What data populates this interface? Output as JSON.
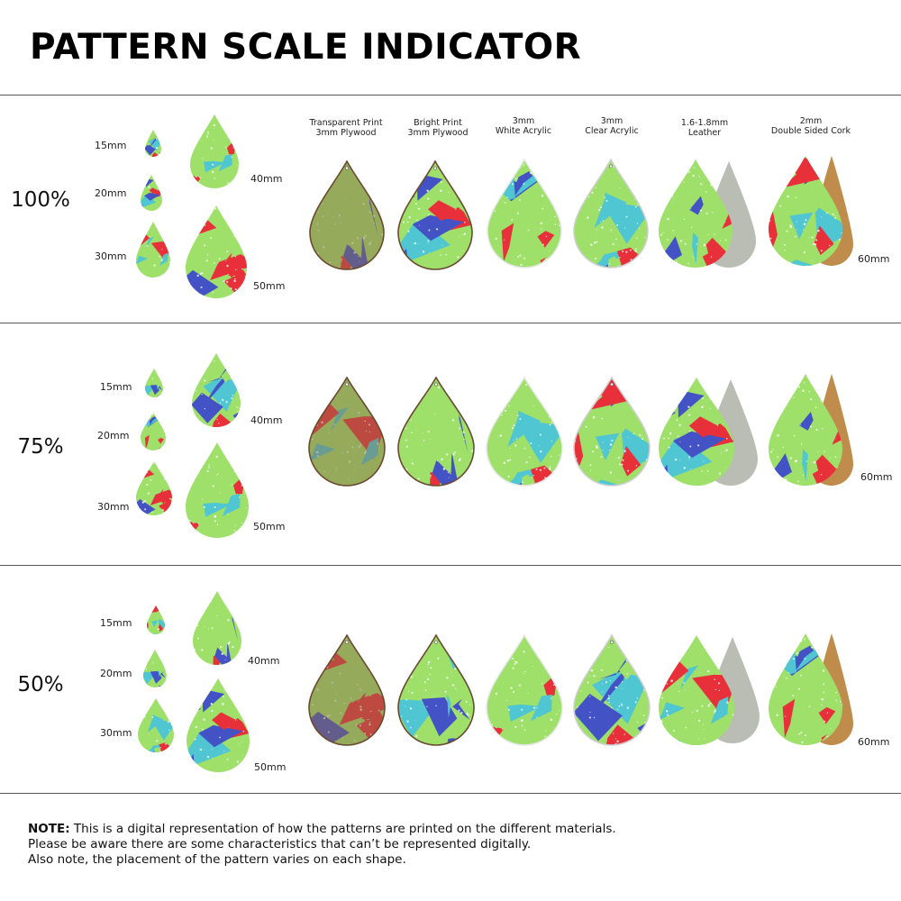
{
  "title": "PATTERN SCALE INDICATOR",
  "materials": [
    {
      "line1": "Transparent Print",
      "line2": "3mm Plywood"
    },
    {
      "line1": "Bright Print",
      "line2": "3mm Plywood"
    },
    {
      "line1": "3mm",
      "line2": "White Acrylic"
    },
    {
      "line1": "3mm",
      "line2": "Clear Acrylic"
    },
    {
      "line1": "1.6-1.8mm",
      "line2": "Leather"
    },
    {
      "line1": "2mm",
      "line2": "Double Sided Cork"
    }
  ],
  "sections": [
    {
      "scale": "100%",
      "sizes": [
        "15mm",
        "20mm",
        "30mm",
        "40mm",
        "50mm"
      ],
      "large_size": "60mm"
    },
    {
      "scale": "75%",
      "sizes": [
        "15mm",
        "20mm",
        "30mm",
        "40mm",
        "50mm"
      ],
      "large_size": "60mm"
    },
    {
      "scale": "50%",
      "sizes": [
        "15mm",
        "20mm",
        "30mm",
        "40mm",
        "50mm"
      ],
      "large_size": "60mm"
    }
  ],
  "note": {
    "lead": "NOTE:",
    "line1": " This is a digital representation of how the patterns are printed on the different materials.",
    "line2": "Please be aware there are some characteristics that can’t be represented digitally.",
    "line3": "Also note, the placement of the pattern varies on each shape."
  },
  "colors": {
    "red": "#e8303a",
    "blue": "#4352c4",
    "green": "#9ee06a",
    "cyan": "#4fc6d2",
    "leather": "#b9bdb4",
    "cork": "#c08c4c",
    "plywood_edge": "#6b4a2f"
  }
}
